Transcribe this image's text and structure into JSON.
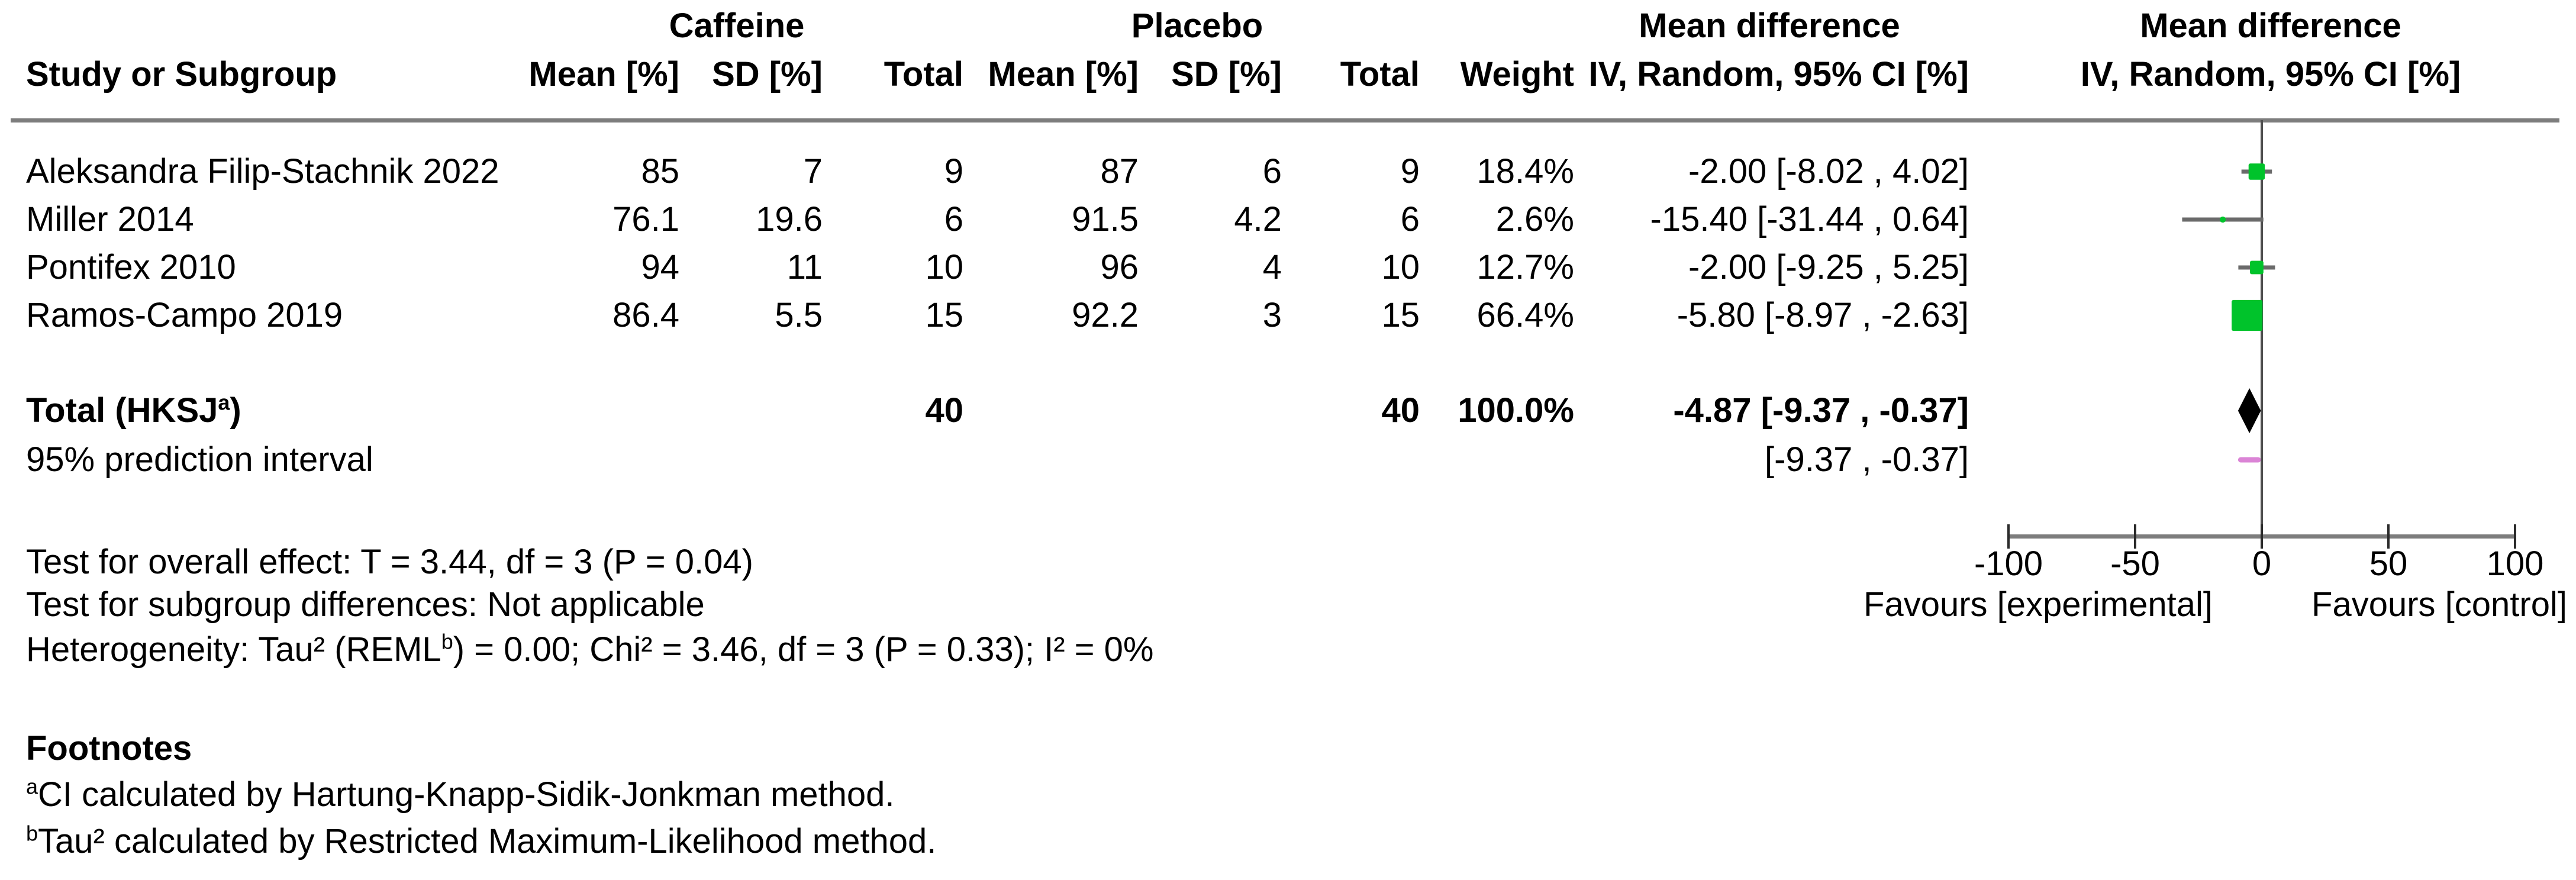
{
  "table": {
    "group1": "Caffeine",
    "group2": "Placebo",
    "col_study": "Study or Subgroup",
    "col_mean": "Mean [%]",
    "col_sd": "SD [%]",
    "col_total": "Total",
    "col_weight": "Weight",
    "col_md": "Mean difference",
    "col_ci": "IV, Random, 95% CI [%]",
    "rows": [
      {
        "study": "Aleksandra Filip-Stachnik 2022",
        "c_mean": "85",
        "c_sd": "7",
        "c_total": "9",
        "p_mean": "87",
        "p_sd": "6",
        "p_total": "9",
        "weight": "18.4%",
        "ci": "-2.00 [-8.02 , 4.02]"
      },
      {
        "study": "Miller 2014",
        "c_mean": "76.1",
        "c_sd": "19.6",
        "c_total": "6",
        "p_mean": "91.5",
        "p_sd": "4.2",
        "p_total": "6",
        "weight": "2.6%",
        "ci": "-15.40 [-31.44 , 0.64]"
      },
      {
        "study": "Pontifex 2010",
        "c_mean": "94",
        "c_sd": "11",
        "c_total": "10",
        "p_mean": "96",
        "p_sd": "4",
        "p_total": "10",
        "weight": "12.7%",
        "ci": "-2.00 [-9.25 , 5.25]"
      },
      {
        "study": "Ramos-Campo 2019",
        "c_mean": "86.4",
        "c_sd": "5.5",
        "c_total": "15",
        "p_mean": "92.2",
        "p_sd": "3",
        "p_total": "15",
        "weight": "66.4%",
        "ci": "-5.80 [-8.97 , -2.63]"
      }
    ],
    "total": {
      "label_main": "Total (HKSJ",
      "label_sup": "a",
      "label_close": ")",
      "c_total": "40",
      "p_total": "40",
      "weight": "100.0%",
      "ci": "-4.87 [-9.37 , -0.37]"
    },
    "prediction": {
      "label": "95% prediction interval",
      "ci": "[-9.37 , -0.37]"
    }
  },
  "stats": {
    "overall_effect": "Test for overall effect: T = 3.44, df = 3 (P = 0.04)",
    "subgroup": "Test for subgroup differences: Not applicable",
    "heterogeneity_pre": "Heterogeneity: Tau² (REML",
    "heterogeneity_sup": "b",
    "heterogeneity_post": ") = 0.00; Chi² = 3.46, df = 3 (P = 0.33); I² = 0%"
  },
  "footnotes": {
    "title": "Footnotes",
    "items": [
      {
        "marker": "a",
        "text": "CI calculated by Hartung-Knapp-Sidik-Jonkman method."
      },
      {
        "marker": "b",
        "text": "Tau² calculated by Restricted Maximum-Likelihood method."
      }
    ]
  },
  "chart_data": {
    "type": "forest",
    "effect_label": "Mean difference",
    "model": "IV, Random, 95% CI [%]",
    "xlim": [
      -100,
      100
    ],
    "ticks": [
      -100,
      -50,
      0,
      50,
      100
    ],
    "axis_label_left": "Favours [experimental]",
    "axis_label_right": "Favours [control]",
    "studies": [
      {
        "name": "Aleksandra Filip-Stachnik 2022",
        "md": -2.0,
        "ci_low": -8.02,
        "ci_high": 4.02,
        "weight": 18.4
      },
      {
        "name": "Miller 2014",
        "md": -15.4,
        "ci_low": -31.44,
        "ci_high": 0.64,
        "weight": 2.6
      },
      {
        "name": "Pontifex 2010",
        "md": -2.0,
        "ci_low": -9.25,
        "ci_high": 5.25,
        "weight": 12.7
      },
      {
        "name": "Ramos-Campo 2019",
        "md": -5.8,
        "ci_low": -8.97,
        "ci_high": -2.63,
        "weight": 66.4
      }
    ],
    "total": {
      "md": -4.87,
      "ci_low": -9.37,
      "ci_high": -0.37
    },
    "prediction_interval": {
      "ci_low": -9.37,
      "ci_high": -0.37
    },
    "colors": {
      "square": "#00c32b",
      "ci_line": "#6a6a6a",
      "diamond": "#000000",
      "prediction": "#db84d6",
      "axis": "#7d7d7d",
      "zero_line": "#4f4f4f",
      "tick": "#2b2b2b"
    }
  }
}
